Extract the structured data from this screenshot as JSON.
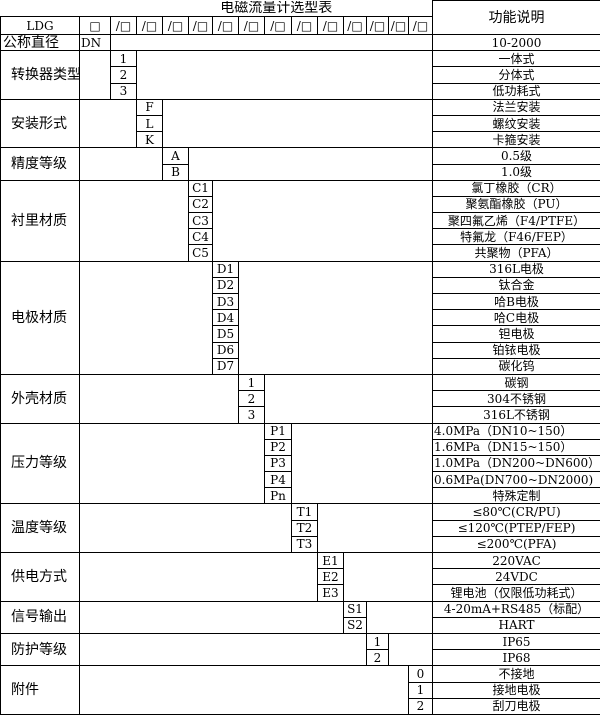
{
  "title": "电磁流量计选型表",
  "description_header": "功能说明",
  "model_row": {
    "label": "LDG",
    "first_slot": "□",
    "slot": "/□"
  },
  "nominal": {
    "label": "公称直径",
    "code": "DN",
    "description": "10-2000"
  },
  "groups": [
    {
      "label": "转换器类型",
      "col": 2,
      "items": [
        {
          "code": "1",
          "desc": "一体式"
        },
        {
          "code": "2",
          "desc": "分体式"
        },
        {
          "code": "3",
          "desc": "低功耗式"
        }
      ]
    },
    {
      "label": "安装形式",
      "col": 3,
      "items": [
        {
          "code": "F",
          "desc": "法兰安装"
        },
        {
          "code": "L",
          "desc": "螺纹安装"
        },
        {
          "code": "K",
          "desc": "卡箍安装"
        }
      ]
    },
    {
      "label": "精度等级",
      "col": 4,
      "items": [
        {
          "code": "A",
          "desc": "0.5级"
        },
        {
          "code": "B",
          "desc": "1.0级"
        }
      ]
    },
    {
      "label": "衬里材质",
      "col": 5,
      "items": [
        {
          "code": "C1",
          "desc": "氯丁橡胶（CR）"
        },
        {
          "code": "C2",
          "desc": "聚氨酯橡胶（PU）"
        },
        {
          "code": "C3",
          "desc": "聚四氟乙烯（F4/PTFE）"
        },
        {
          "code": "C4",
          "desc": "特氟龙（F46/FEP）"
        },
        {
          "code": "C5",
          "desc": "共聚物（PFA）"
        }
      ]
    },
    {
      "label": "电极材质",
      "col": 6,
      "items": [
        {
          "code": "D1",
          "desc": "316L电极"
        },
        {
          "code": "D2",
          "desc": "钛合金"
        },
        {
          "code": "D3",
          "desc": "哈B电极"
        },
        {
          "code": "D4",
          "desc": "哈C电极"
        },
        {
          "code": "D5",
          "desc": "钽电极"
        },
        {
          "code": "D6",
          "desc": "铂铱电极"
        },
        {
          "code": "D7",
          "desc": "碳化钨"
        }
      ]
    },
    {
      "label": "外壳材质",
      "col": 7,
      "items": [
        {
          "code": "1",
          "desc": "碳钢"
        },
        {
          "code": "2",
          "desc": "304不锈钢"
        },
        {
          "code": "3",
          "desc": "316L不锈钢"
        }
      ]
    },
    {
      "label": "压力等级",
      "col": 8,
      "items": [
        {
          "code": "P1",
          "desc": "4.0MPa（DN10~150）",
          "align": "left"
        },
        {
          "code": "P2",
          "desc": "1.6MPa（DN15~150）",
          "align": "left"
        },
        {
          "code": "P3",
          "desc": "1.0MPa（DN200~DN600）",
          "align": "left"
        },
        {
          "code": "P4",
          "desc": "0.6MPa(DN700~DN2000)",
          "align": "left"
        },
        {
          "code": "Pn",
          "desc": "特殊定制"
        }
      ]
    },
    {
      "label": "温度等级",
      "col": 9,
      "items": [
        {
          "code": "T1",
          "desc": "≤80℃(CR/PU)"
        },
        {
          "code": "T2",
          "desc": "≤120℃(PTEP/FEP)"
        },
        {
          "code": "T3",
          "desc": "≤200℃(PFA)"
        }
      ]
    },
    {
      "label": "供电方式",
      "col": 10,
      "items": [
        {
          "code": "E1",
          "desc": "220VAC"
        },
        {
          "code": "E2",
          "desc": "24VDC"
        },
        {
          "code": "E3",
          "desc": "锂电池（仅限低功耗式）"
        }
      ]
    },
    {
      "label": "信号输出",
      "col": 11,
      "items": [
        {
          "code": "S1",
          "desc": "4-20mA+RS485（标配）"
        },
        {
          "code": "S2",
          "desc": "HART"
        }
      ]
    },
    {
      "label": "防护等级",
      "col": 12,
      "items": [
        {
          "code": "1",
          "desc": "IP65"
        },
        {
          "code": "2",
          "desc": "IP68"
        }
      ]
    },
    {
      "label": "附件",
      "col": 14,
      "items": [
        {
          "code": "0",
          "desc": "不接地"
        },
        {
          "code": "1",
          "desc": "接地电极"
        },
        {
          "code": "2",
          "desc": "刮刀电极"
        }
      ]
    }
  ]
}
